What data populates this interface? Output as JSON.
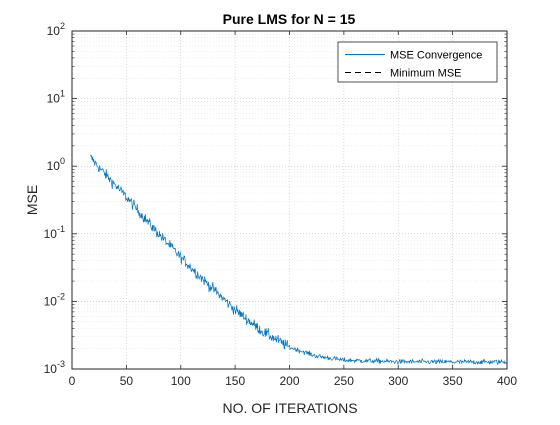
{
  "chart_data": {
    "type": "line",
    "title": "Pure LMS for N = 15",
    "xlabel": "NO. OF ITERATIONS",
    "ylabel": "MSE",
    "xlim": [
      0,
      400
    ],
    "ylim": [
      0.001,
      100
    ],
    "yscale": "log",
    "grid": true,
    "minor_grid": true,
    "legend_position": "top-right",
    "xticks": [
      0,
      50,
      100,
      150,
      200,
      250,
      300,
      350,
      400
    ],
    "xtick_labels": [
      "0",
      "50",
      "100",
      "150",
      "200",
      "250",
      "300",
      "350",
      "400"
    ],
    "yticks": [
      0.001,
      0.01,
      0.1,
      1,
      10,
      100
    ],
    "ytick_labels": [
      {
        "base": "10",
        "exp": "-3"
      },
      {
        "base": "10",
        "exp": "-2"
      },
      {
        "base": "10",
        "exp": "-1"
      },
      {
        "base": "10",
        "exp": "0"
      },
      {
        "base": "10",
        "exp": "1"
      },
      {
        "base": "10",
        "exp": "2"
      }
    ],
    "series": [
      {
        "name": "MSE Convergence",
        "style": "solid",
        "color": "#0072bd",
        "noise": true,
        "x": [
          17,
          25,
          50,
          75,
          100,
          125,
          150,
          175,
          200,
          225,
          250,
          300,
          350,
          400
        ],
        "y": [
          1.35,
          0.95,
          0.35,
          0.12,
          0.045,
          0.018,
          0.0075,
          0.0036,
          0.0021,
          0.00155,
          0.00135,
          0.00128,
          0.00127,
          0.00127
        ]
      },
      {
        "name": "Minimum MSE",
        "style": "dashed",
        "color": "#000000",
        "x": [
          0,
          400
        ],
        "y": [
          0.001,
          0.001
        ]
      }
    ]
  }
}
